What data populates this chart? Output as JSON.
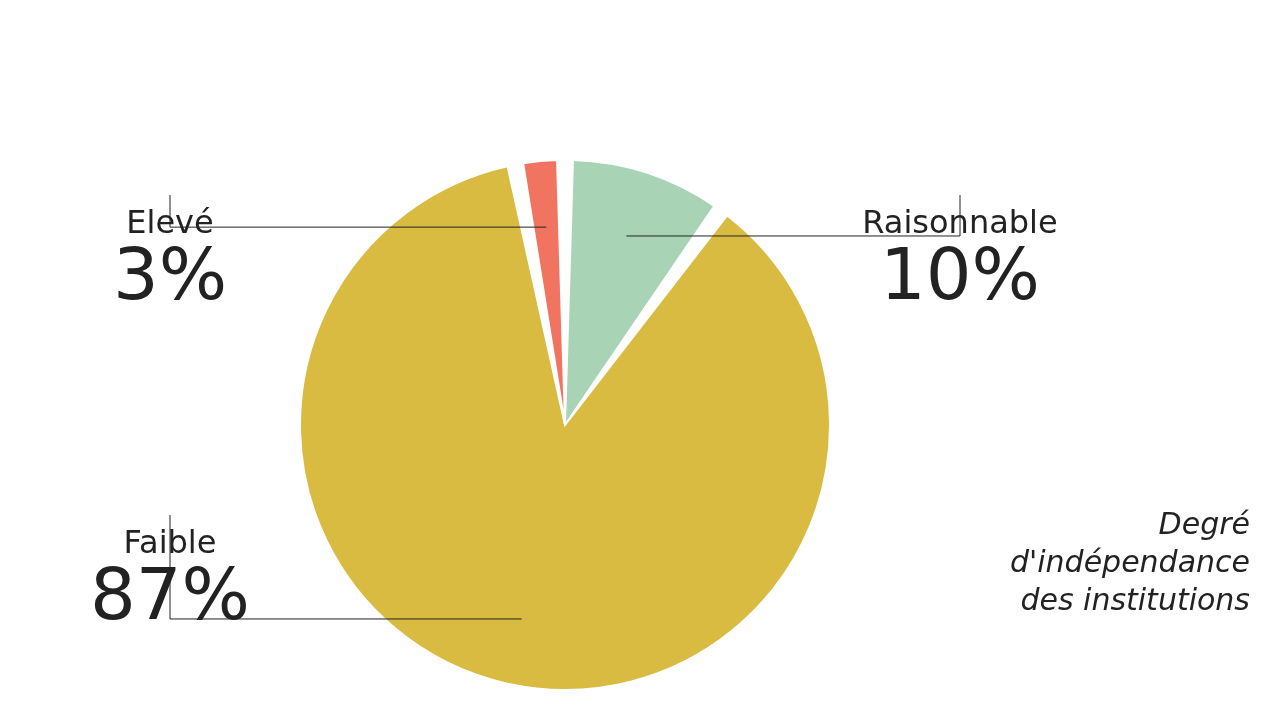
{
  "chart_data": {
    "type": "pie",
    "title": "Degré d'indépendance des institutions",
    "categories": [
      "Raisonnable",
      "Faible",
      "Elevé"
    ],
    "values": [
      10,
      87,
      3
    ],
    "colors": [
      "#a8d3b5",
      "#d9bb42",
      "#f07460"
    ],
    "value_labels": [
      "10%",
      "87%",
      "3%"
    ]
  }
}
